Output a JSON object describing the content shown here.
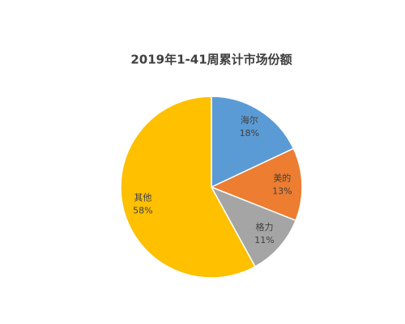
{
  "chart_data": {
    "type": "pie",
    "title": "2019年1-41周累计市场份额",
    "categories": [
      "海尔",
      "美的",
      "格力",
      "其他"
    ],
    "values": [
      18,
      13,
      11,
      58
    ],
    "value_labels": [
      "18%",
      "13%",
      "11%",
      "58%"
    ],
    "colors": [
      "#5b9bd5",
      "#ed7d31",
      "#a5a5a5",
      "#ffc000"
    ]
  }
}
